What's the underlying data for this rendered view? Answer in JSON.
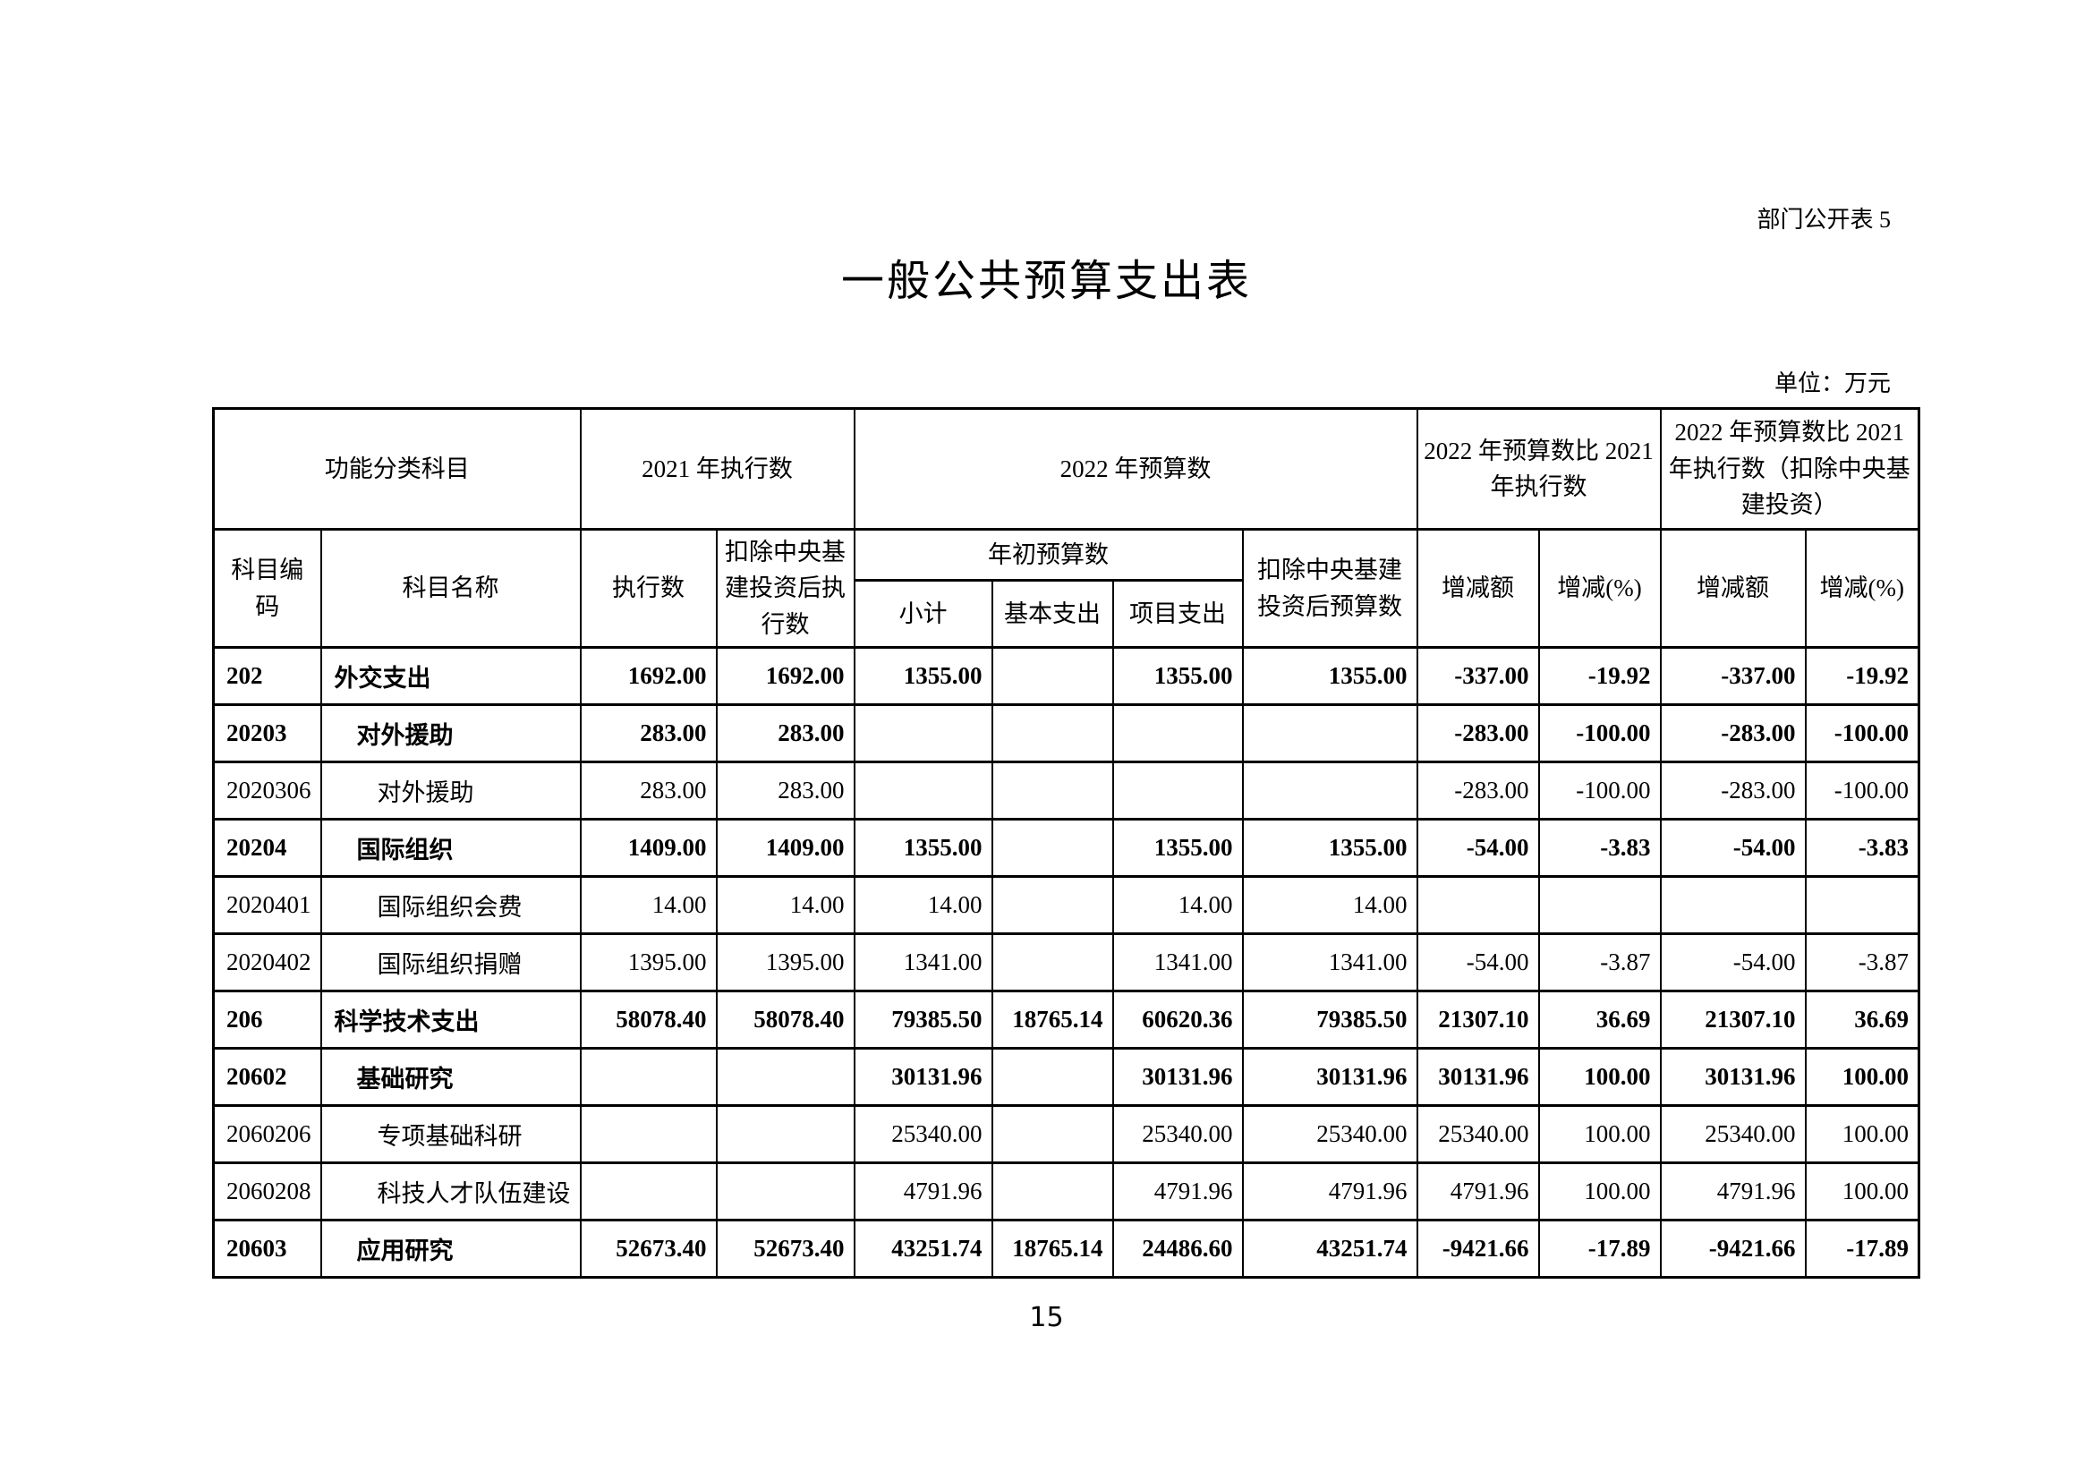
{
  "page": {
    "corner_label": "部门公开表 5",
    "title": "一般公共预算支出表",
    "unit_note": "单位：万元",
    "page_number": "15"
  },
  "table": {
    "header": {
      "row1": {
        "func_class": "功能分类科目",
        "exec_2021": "2021 年执行数",
        "budget_2022": "2022 年预算数",
        "cmp_exec": "2022 年预算数比 2021 年执行数",
        "cmp_exec_excl": "2022 年预算数比 2021 年执行数（扣除中央基建投资）"
      },
      "row2": {
        "subject_code": "科目编码",
        "subject_name": "科目名称",
        "exec_num": "执行数",
        "exec_excl_central": "扣除中央基建投资后执行数",
        "initial_budget": "年初预算数",
        "budget_excl_central": "扣除中央基建投资后预算数",
        "delta_amount_1": "增减额",
        "delta_pct_1": "增减(%)",
        "delta_amount_2": "增减额",
        "delta_pct_2": "增减(%)"
      },
      "row3": {
        "subtotal": "小计",
        "basic_exp": "基本支出",
        "project_exp": "项目支出"
      }
    },
    "rows": [
      {
        "code": "202",
        "name": "外交支出",
        "indent": 1,
        "bold": true,
        "values": [
          "1692.00",
          "1692.00",
          "1355.00",
          "",
          "1355.00",
          "1355.00",
          "-337.00",
          "-19.92",
          "-337.00",
          "-19.92"
        ]
      },
      {
        "code": "20203",
        "name": "对外援助",
        "indent": 2,
        "bold": true,
        "values": [
          "283.00",
          "283.00",
          "",
          "",
          "",
          "",
          "-283.00",
          "-100.00",
          "-283.00",
          "-100.00"
        ]
      },
      {
        "code": "2020306",
        "name": "对外援助",
        "indent": 3,
        "bold": false,
        "values": [
          "283.00",
          "283.00",
          "",
          "",
          "",
          "",
          "-283.00",
          "-100.00",
          "-283.00",
          "-100.00"
        ]
      },
      {
        "code": "20204",
        "name": "国际组织",
        "indent": 2,
        "bold": true,
        "values": [
          "1409.00",
          "1409.00",
          "1355.00",
          "",
          "1355.00",
          "1355.00",
          "-54.00",
          "-3.83",
          "-54.00",
          "-3.83"
        ]
      },
      {
        "code": "2020401",
        "name": "国际组织会费",
        "indent": 3,
        "bold": false,
        "values": [
          "14.00",
          "14.00",
          "14.00",
          "",
          "14.00",
          "14.00",
          "",
          "",
          "",
          ""
        ]
      },
      {
        "code": "2020402",
        "name": "国际组织捐赠",
        "indent": 3,
        "bold": false,
        "values": [
          "1395.00",
          "1395.00",
          "1341.00",
          "",
          "1341.00",
          "1341.00",
          "-54.00",
          "-3.87",
          "-54.00",
          "-3.87"
        ]
      },
      {
        "code": "206",
        "name": "科学技术支出",
        "indent": 1,
        "bold": true,
        "values": [
          "58078.40",
          "58078.40",
          "79385.50",
          "18765.14",
          "60620.36",
          "79385.50",
          "21307.10",
          "36.69",
          "21307.10",
          "36.69"
        ]
      },
      {
        "code": "20602",
        "name": "基础研究",
        "indent": 2,
        "bold": true,
        "values": [
          "",
          "",
          "30131.96",
          "",
          "30131.96",
          "30131.96",
          "30131.96",
          "100.00",
          "30131.96",
          "100.00"
        ]
      },
      {
        "code": "2060206",
        "name": "专项基础科研",
        "indent": 3,
        "bold": false,
        "values": [
          "",
          "",
          "25340.00",
          "",
          "25340.00",
          "25340.00",
          "25340.00",
          "100.00",
          "25340.00",
          "100.00"
        ]
      },
      {
        "code": "2060208",
        "name": "科技人才队伍建设",
        "indent": 3,
        "bold": false,
        "values": [
          "",
          "",
          "4791.96",
          "",
          "4791.96",
          "4791.96",
          "4791.96",
          "100.00",
          "4791.96",
          "100.00"
        ]
      },
      {
        "code": "20603",
        "name": "应用研究",
        "indent": 2,
        "bold": true,
        "values": [
          "52673.40",
          "52673.40",
          "43251.74",
          "18765.14",
          "24486.60",
          "43251.74",
          "-9421.66",
          "-17.89",
          "-9421.66",
          "-17.89"
        ]
      }
    ]
  }
}
